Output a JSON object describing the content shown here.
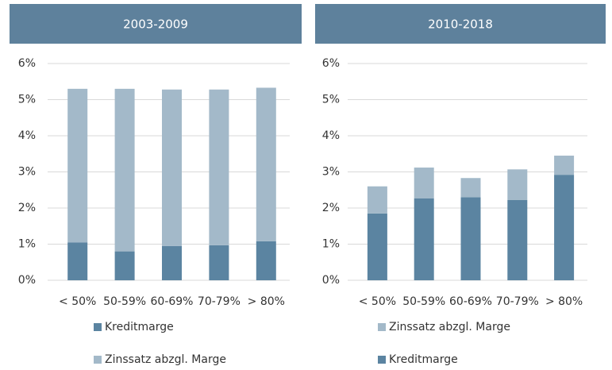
{
  "chart_data": [
    {
      "type": "bar",
      "stacked": true,
      "title": "2003-2009",
      "categories": [
        "< 50%",
        "50-59%",
        "60-69%",
        "70-79%",
        "> 80%"
      ],
      "series": [
        {
          "name": "Kreditmarge",
          "color": "#5b84a1",
          "values": [
            1.05,
            0.8,
            0.95,
            0.97,
            1.08
          ]
        },
        {
          "name": "Zinssatz abzgl. Marge",
          "color": "#a3b9c9",
          "values": [
            4.25,
            4.5,
            4.33,
            4.31,
            4.25
          ]
        }
      ],
      "ylim": [
        0,
        6
      ],
      "yticks": [
        {
          "value": 0,
          "label": "0%"
        },
        {
          "value": 1,
          "label": "1%"
        },
        {
          "value": 2,
          "label": "2%"
        },
        {
          "value": 3,
          "label": "3%"
        },
        {
          "value": 4,
          "label": "4%"
        },
        {
          "value": 5,
          "label": "5%"
        },
        {
          "value": 6,
          "label": "6%"
        }
      ],
      "grid": true,
      "legend_order": "normal"
    },
    {
      "type": "bar",
      "stacked": true,
      "title": "2010-2018",
      "categories": [
        "< 50%",
        "50-59%",
        "60-69%",
        "70-79%",
        "> 80%"
      ],
      "series": [
        {
          "name": "Kreditmarge",
          "color": "#5b84a1",
          "values": [
            1.85,
            2.27,
            2.3,
            2.22,
            2.92
          ]
        },
        {
          "name": "Zinssatz abzgl. Marge",
          "color": "#a3b9c9",
          "values": [
            0.75,
            0.85,
            0.53,
            0.85,
            0.53
          ]
        }
      ],
      "ylim": [
        0,
        6
      ],
      "yticks": [
        {
          "value": 0,
          "label": "0%"
        },
        {
          "value": 1,
          "label": "1%"
        },
        {
          "value": 2,
          "label": "2%"
        },
        {
          "value": 3,
          "label": "3%"
        },
        {
          "value": 4,
          "label": "4%"
        },
        {
          "value": 5,
          "label": "5%"
        },
        {
          "value": 6,
          "label": "6%"
        }
      ],
      "grid": true,
      "legend_order": "reverse"
    }
  ]
}
